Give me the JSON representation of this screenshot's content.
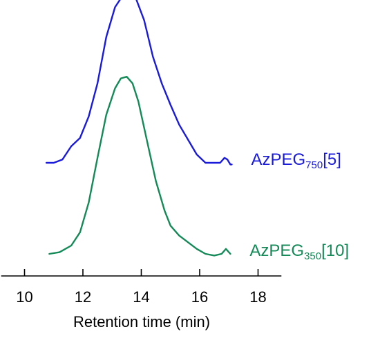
{
  "chart_data": {
    "type": "line",
    "title": "",
    "xlabel": "Retention time (min)",
    "ylabel": "",
    "xlim": [
      9.2,
      18.8
    ],
    "xticks": [
      10,
      12,
      14,
      16,
      18
    ],
    "xtick_labels": [
      "10",
      "12",
      "14",
      "16",
      "18"
    ],
    "grid": false,
    "legend": "direct labels at right end of each trace",
    "series": [
      {
        "name": "AzPEG750[5]",
        "label_main": "AzPEG",
        "label_sub": "750",
        "label_tail": "[5]",
        "color": "#1a1adb",
        "baseline_offset": 0.55,
        "x": [
          10.75,
          11.0,
          11.3,
          11.6,
          11.9,
          12.2,
          12.5,
          12.8,
          13.1,
          13.4,
          13.6,
          13.8,
          14.1,
          14.4,
          14.7,
          15.0,
          15.3,
          15.6,
          15.9,
          16.2,
          16.5,
          16.7,
          16.85,
          16.95,
          17.05,
          17.1
        ],
        "y": [
          0.0,
          0.0,
          0.02,
          0.1,
          0.15,
          0.28,
          0.48,
          0.76,
          0.94,
          1.02,
          1.04,
          1.0,
          0.86,
          0.64,
          0.48,
          0.35,
          0.23,
          0.14,
          0.05,
          0.0,
          0.0,
          0.0,
          0.03,
          0.02,
          -0.01,
          -0.01
        ]
      },
      {
        "name": "AzPEG350[10]",
        "label_main": "AzPEG",
        "label_sub": "350",
        "label_tail": "[10]",
        "color": "#138a57",
        "baseline_offset": 0.0,
        "x": [
          10.85,
          11.2,
          11.6,
          11.9,
          12.2,
          12.5,
          12.8,
          13.1,
          13.3,
          13.5,
          13.7,
          13.9,
          14.2,
          14.5,
          14.8,
          15.0,
          15.3,
          15.6,
          15.9,
          16.2,
          16.5,
          16.75,
          16.9,
          17.05
        ],
        "y": [
          0.0,
          0.01,
          0.05,
          0.13,
          0.31,
          0.58,
          0.84,
          1.0,
          1.06,
          1.07,
          1.03,
          0.92,
          0.68,
          0.44,
          0.26,
          0.17,
          0.11,
          0.07,
          0.03,
          0.0,
          -0.01,
          0.0,
          0.03,
          0.0
        ]
      }
    ]
  }
}
